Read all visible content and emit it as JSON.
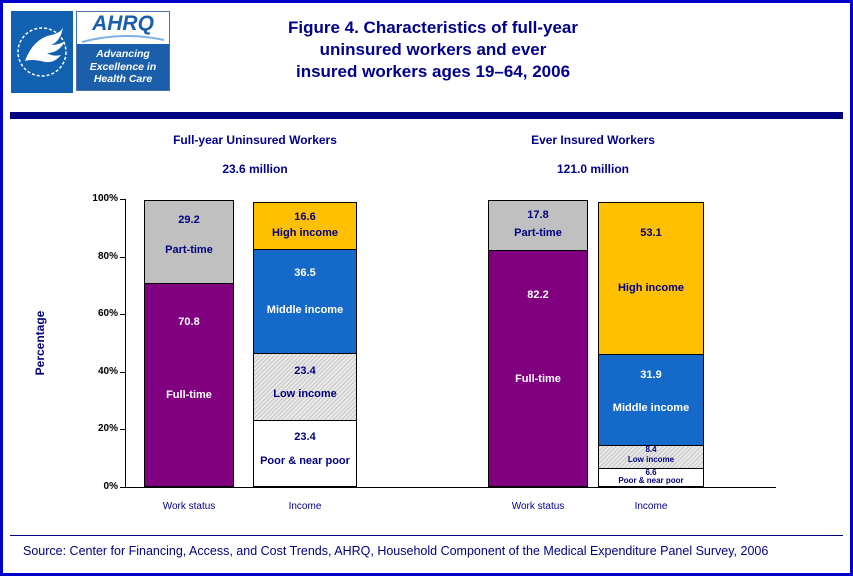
{
  "page": {
    "border_color": "#0000CD",
    "background": "#FFFFFF",
    "accent_navy": "#000080"
  },
  "header": {
    "title_lines": [
      "Figure 4. Characteristics of full-year",
      "uninsured workers and ever",
      "insured workers ages 19–64, 2006"
    ],
    "title_color": "#00008B",
    "icons": {
      "hhs_logo": "hhs-eagle-seal",
      "ahrq_logo": "ahrq-wordmark"
    },
    "ahrq_logo": {
      "name": "AHRQ",
      "tagline_lines": [
        "Advancing",
        "Excellence in",
        "Health Care"
      ]
    }
  },
  "chart_data": {
    "type": "bar",
    "stacked": true,
    "title": "Characteristics of full-year uninsured workers and ever insured workers ages 19–64, 2006",
    "ylabel": "Percentage",
    "xlabel": "",
    "ylim": [
      0,
      100
    ],
    "yticks": [
      "100%",
      "80%",
      "60%",
      "40%",
      "20%",
      "0%"
    ],
    "grid": false,
    "legend": false,
    "palette": {
      "purple": {
        "bg": "#800080",
        "text": "#FFFFFF"
      },
      "gray": {
        "bg": "#C0C0C0",
        "text": "#000080"
      },
      "hatch": {
        "bg": "#E0E0E0",
        "text": "#000080",
        "pattern": true
      },
      "blue": {
        "bg": "#1569C8",
        "text": "#FFFFFF"
      },
      "gold": {
        "bg": "#FFC000",
        "text": "#000080"
      },
      "white": {
        "bg": "#FFFFFF",
        "text": "#000080"
      }
    },
    "groups": [
      {
        "title": "Full-year Uninsured Workers",
        "subtitle": "23.6 million",
        "bars": [
          {
            "category": "Work status",
            "segments": [
              {
                "label": "Full-time",
                "value": 70.8,
                "color": "purple"
              },
              {
                "label": "Part-time",
                "value": 29.2,
                "color": "gray"
              }
            ]
          },
          {
            "category": "Income",
            "segments": [
              {
                "label": "Poor & near poor",
                "value": 23.4,
                "color": "white"
              },
              {
                "label": "Low income",
                "value": 23.4,
                "color": "hatch"
              },
              {
                "label": "Middle income",
                "value": 36.5,
                "color": "blue"
              },
              {
                "label": "High income",
                "value": 16.6,
                "color": "gold"
              }
            ]
          }
        ]
      },
      {
        "title": "Ever Insured Workers",
        "subtitle": "121.0 million",
        "bars": [
          {
            "category": "Work status",
            "segments": [
              {
                "label": "Full-time",
                "value": 82.2,
                "color": "purple"
              },
              {
                "label": "Part-time",
                "value": 17.8,
                "color": "gray"
              }
            ]
          },
          {
            "category": "Income",
            "segments": [
              {
                "label": "Poor & near poor",
                "value": 6.6,
                "color": "white"
              },
              {
                "label": "Low income",
                "value": 8.4,
                "color": "hatch"
              },
              {
                "label": "Middle income",
                "value": 31.9,
                "color": "blue"
              },
              {
                "label": "High income",
                "value": 53.1,
                "color": "gold"
              }
            ]
          }
        ]
      }
    ]
  },
  "source": "Source: Center for Financing, Access, and Cost Trends, AHRQ, Household Component of the Medical Expenditure Panel Survey, 2006"
}
